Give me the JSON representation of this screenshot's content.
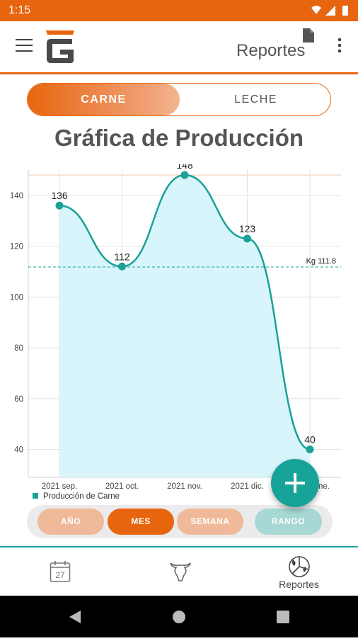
{
  "status_bar": {
    "time": "1:15"
  },
  "app_bar": {
    "title": "Reportes"
  },
  "segments": {
    "carne": "CARNE",
    "leche": "LECHE",
    "selected": "carne"
  },
  "chart_title": "Gráfica de Producción",
  "chart_data": {
    "type": "area",
    "categories": [
      "2021 sep.",
      "2021 oct.",
      "2021 nov.",
      "2021 dic.",
      "2022 ene."
    ],
    "visible_tick_labels": [
      "2021 sep.",
      "2021 oct.",
      "2021 nov.",
      "2021 dic.",
      "ne."
    ],
    "series": [
      {
        "name": "Producción de Carne",
        "values": [
          136,
          112,
          148,
          123,
          40
        ]
      }
    ],
    "y_ticks": [
      40,
      60,
      80,
      100,
      120,
      140
    ],
    "ylim": [
      29,
      150
    ],
    "average_line": {
      "value": 111.8,
      "label": "Kg 111.8"
    },
    "max_line": 148,
    "grid": true,
    "legend_position": "bottom-left",
    "colors": {
      "line": "#1aa198",
      "fill": "#d7f5fb",
      "average": "#1aa198",
      "max": "#f2c9a6"
    }
  },
  "periods": [
    {
      "label": "AÑO",
      "state": "inactive"
    },
    {
      "label": "MES",
      "state": "active"
    },
    {
      "label": "SEMANA",
      "state": "inactive"
    },
    {
      "label": "RANGO",
      "state": "disabled"
    }
  ],
  "fab": {
    "icon": "plus-icon"
  },
  "bottom_nav": {
    "items": [
      {
        "icon": "calendar-icon",
        "day": "27",
        "label": ""
      },
      {
        "icon": "cow-head-icon",
        "label": ""
      },
      {
        "icon": "reports-icon",
        "label": "Reportes"
      }
    ]
  },
  "colors": {
    "accent": "#e8650f",
    "teal": "#18a399"
  }
}
